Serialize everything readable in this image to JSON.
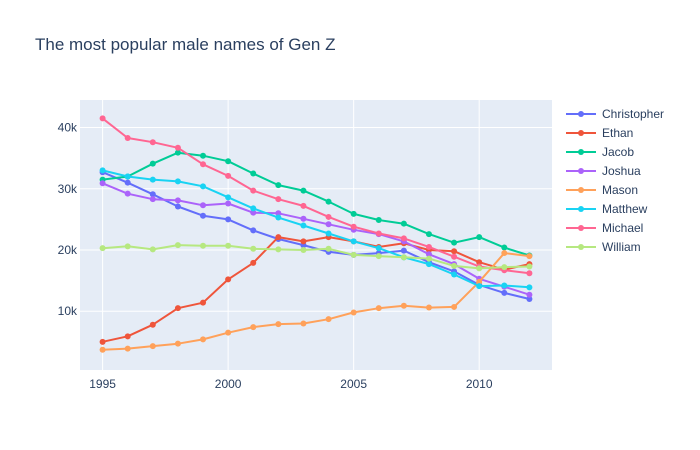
{
  "chart_data": {
    "type": "line",
    "title": "The most popular male names of Gen Z",
    "xlabel": "",
    "ylabel": "",
    "x": [
      1995,
      1996,
      1997,
      1998,
      1999,
      2000,
      2001,
      2002,
      2003,
      2004,
      2005,
      2006,
      2007,
      2008,
      2009,
      2010,
      2011,
      2012
    ],
    "xlim": [
      1994.1,
      2012.9
    ],
    "ylim": [
      400,
      44500
    ],
    "x_ticks": [
      1995,
      2000,
      2005,
      2010
    ],
    "y_ticks": [
      10000,
      20000,
      30000,
      40000
    ],
    "y_tick_labels": [
      "10k",
      "20k",
      "30k",
      "40k"
    ],
    "grid": true,
    "legend_position": "right",
    "colors": {
      "plot_background": "#e5ecf6",
      "grid": "#ffffff",
      "text": "#2a3f5f"
    },
    "series": [
      {
        "name": "Christopher",
        "color": "#636efa",
        "values": [
          32700,
          31000,
          29100,
          27100,
          25600,
          25000,
          23200,
          21800,
          20800,
          19700,
          19200,
          19500,
          19900,
          18000,
          16500,
          14300,
          13000,
          12000
        ]
      },
      {
        "name": "Ethan",
        "color": "#ef553b",
        "values": [
          5000,
          5900,
          7800,
          10500,
          11400,
          15200,
          17900,
          22100,
          21400,
          22100,
          21400,
          20500,
          21100,
          20000,
          19800,
          18000,
          16800,
          17700
        ]
      },
      {
        "name": "Jacob",
        "color": "#00cc96",
        "values": [
          31500,
          32000,
          34100,
          35900,
          35400,
          34500,
          32500,
          30600,
          29700,
          27900,
          25900,
          24900,
          24300,
          22600,
          21200,
          22100,
          20400,
          19100
        ]
      },
      {
        "name": "Joshua",
        "color": "#ab63fa",
        "values": [
          30900,
          29200,
          28300,
          28100,
          27300,
          27600,
          26100,
          26000,
          25100,
          24200,
          23300,
          22600,
          21400,
          19300,
          17700,
          15300,
          14000,
          12700
        ]
      },
      {
        "name": "Mason",
        "color": "#ffa15a",
        "values": [
          3700,
          3900,
          4300,
          4700,
          5400,
          6500,
          7400,
          7900,
          8000,
          8700,
          9800,
          10500,
          10900,
          10600,
          10700,
          14800,
          19500,
          19000
        ]
      },
      {
        "name": "Matthew",
        "color": "#19d3f3",
        "values": [
          33000,
          32000,
          31500,
          31200,
          30400,
          28600,
          26800,
          25300,
          24000,
          22700,
          21400,
          20300,
          18800,
          17700,
          16000,
          14100,
          14200,
          13900
        ]
      },
      {
        "name": "Michael",
        "color": "#ff6692",
        "values": [
          41500,
          38300,
          37600,
          36700,
          34000,
          32100,
          29700,
          28300,
          27200,
          25400,
          23800,
          22700,
          21900,
          20500,
          18900,
          17300,
          16700,
          16200
        ]
      },
      {
        "name": "William",
        "color": "#b6e880",
        "values": [
          20300,
          20600,
          20100,
          20800,
          20700,
          20700,
          20200,
          20100,
          20000,
          20200,
          19200,
          19000,
          18800,
          18600,
          17400,
          17000,
          17200,
          17300
        ]
      }
    ]
  }
}
